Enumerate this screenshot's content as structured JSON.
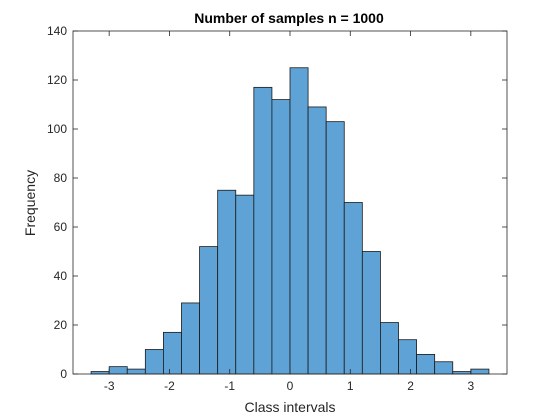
{
  "chart_data": {
    "type": "bar",
    "title": "Number of samples n = 1000",
    "xlabel": "Class intervals",
    "ylabel": "Frequency",
    "xlim": [
      -3.6,
      3.6
    ],
    "ylim": [
      0,
      140
    ],
    "xticks": [
      -3,
      -2,
      -1,
      0,
      1,
      2,
      3
    ],
    "yticks": [
      0,
      20,
      40,
      60,
      80,
      100,
      120,
      140
    ],
    "bin_edges": [
      -3.3,
      -3.0,
      -2.7,
      -2.4,
      -2.1,
      -1.8,
      -1.5,
      -1.2,
      -0.9,
      -0.6,
      -0.3,
      0.0,
      0.3,
      0.6,
      0.9,
      1.2,
      1.5,
      1.8,
      2.1,
      2.4,
      2.7,
      3.0,
      3.3
    ],
    "values": [
      1,
      3,
      2,
      10,
      17,
      29,
      52,
      75,
      73,
      117,
      112,
      125,
      109,
      103,
      70,
      50,
      21,
      14,
      8,
      5,
      1,
      2
    ],
    "grid": false,
    "colors": {
      "bar": "#5fa3d6",
      "edge": "#1a1a1a"
    }
  }
}
